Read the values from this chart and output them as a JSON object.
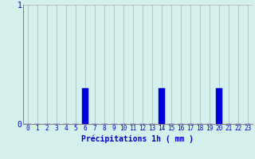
{
  "hours": [
    0,
    1,
    2,
    3,
    4,
    5,
    6,
    7,
    8,
    9,
    10,
    11,
    12,
    13,
    14,
    15,
    16,
    17,
    18,
    19,
    20,
    21,
    22,
    23
  ],
  "values": [
    0,
    0,
    0,
    0,
    0,
    0,
    0.3,
    0,
    0,
    0,
    0,
    0,
    0,
    0,
    0.3,
    0,
    0,
    0,
    0,
    0,
    0.3,
    0,
    0,
    0
  ],
  "bar_color": "#0000dd",
  "bar_edge_color": "#0000cc",
  "background_color": "#d5f0ec",
  "grid_color_v": "#c0aaaa",
  "grid_color_h": "#c0aaaa",
  "xlabel": "Précipitations 1h ( mm )",
  "xlabel_color": "#0000cc",
  "tick_color": "#0000cc",
  "axis_color": "#888888",
  "ylim": [
    0,
    1
  ],
  "xlim": [
    -0.5,
    23.5
  ],
  "ytick_labels": [
    "0",
    "1"
  ],
  "ytick_vals": [
    0,
    1
  ],
  "xticks": [
    0,
    1,
    2,
    3,
    4,
    5,
    6,
    7,
    8,
    9,
    10,
    11,
    12,
    13,
    14,
    15,
    16,
    17,
    18,
    19,
    20,
    21,
    22,
    23
  ],
  "tick_fontsize": 5.5,
  "ytick_fontsize": 7,
  "xlabel_fontsize": 7
}
